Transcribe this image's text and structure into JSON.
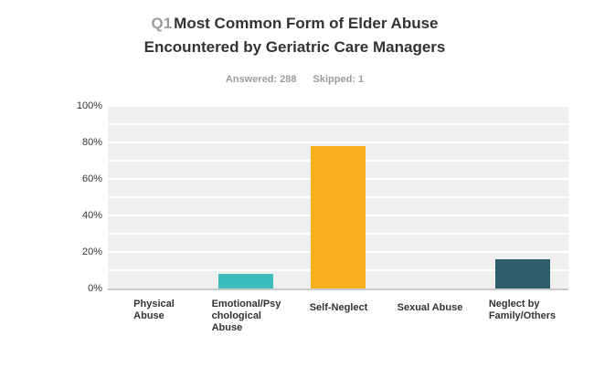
{
  "header": {
    "question_label": "Q1",
    "title_line1": "Most Common Form of Elder Abuse",
    "title_line2": "Encountered by Geriatric Care Managers",
    "answered_label": "Answered: 288",
    "skipped_label": "Skipped: 1"
  },
  "colors": {
    "page_background": "#ffffff",
    "title_text": "#333333",
    "muted_text": "#9d9d9d",
    "axis_text": "#333333",
    "plot_background": "#efefef",
    "gridline": "#ffffff",
    "axis_line": "#c9c9c9"
  },
  "chart_data": {
    "type": "bar",
    "title": "Q1 Most Common Form of Elder Abuse Encountered by Geriatric Care Managers",
    "subtitle": "Answered: 288  Skipped: 1",
    "answered": 288,
    "skipped": 1,
    "categories": [
      "Physical Abuse",
      "Emotional/Psychological Abuse",
      "Self-Neglect",
      "Sexual Abuse",
      "Neglect by Family/Others"
    ],
    "category_label_lines": [
      [
        "Physical",
        "Abuse"
      ],
      [
        "Emotional/Psy",
        "chological",
        "Abuse"
      ],
      [
        "Self-Neglect"
      ],
      [
        "Sexual Abuse"
      ],
      [
        "Neglect by",
        "Family/Others"
      ]
    ],
    "values": [
      0,
      8,
      78,
      0,
      16
    ],
    "unit": "%",
    "bar_colors": [
      null,
      "#3dbcbe",
      "#f6b01d",
      null,
      "#2f5e6b"
    ],
    "ylim": [
      0,
      100
    ],
    "ytick_labels": [
      "0%",
      "20%",
      "40%",
      "60%",
      "80%",
      "100%"
    ],
    "ytick_step": 20,
    "grid_step": 10,
    "grid": true,
    "legend": false,
    "xlabel": "",
    "ylabel": ""
  }
}
